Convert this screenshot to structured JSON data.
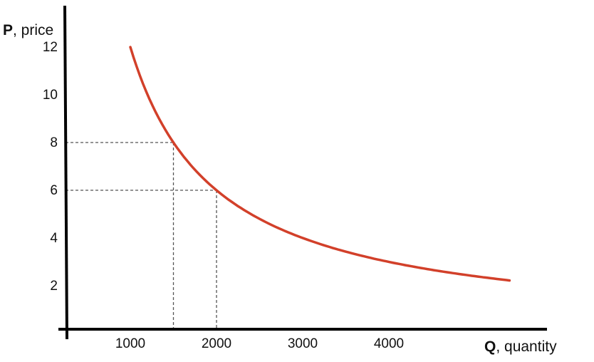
{
  "chart_data": {
    "type": "line",
    "title": "",
    "xlabel": {
      "symbol": "Q",
      "text": ", quantity"
    },
    "ylabel": {
      "symbol": "P",
      "text": ", price"
    },
    "x_ticks": [
      1000,
      2000,
      3000,
      4000
    ],
    "y_ticks": [
      2,
      4,
      6,
      8,
      10,
      12
    ],
    "xlim": [
      0,
      5700
    ],
    "ylim": [
      0,
      12
    ],
    "grid": false,
    "curve_color": "#d2402a",
    "series": [
      {
        "x": [
          1000,
          1200,
          1500,
          1800,
          2000,
          2500,
          3000,
          3500,
          4000,
          4500,
          5000,
          5400
        ],
        "y": [
          12,
          10,
          8,
          6.67,
          6,
          4.8,
          4,
          3.43,
          3,
          2.67,
          2.4,
          2.22
        ]
      }
    ],
    "reference_points": [
      {
        "x": 1500,
        "y": 8
      },
      {
        "x": 2000,
        "y": 6
      }
    ]
  }
}
